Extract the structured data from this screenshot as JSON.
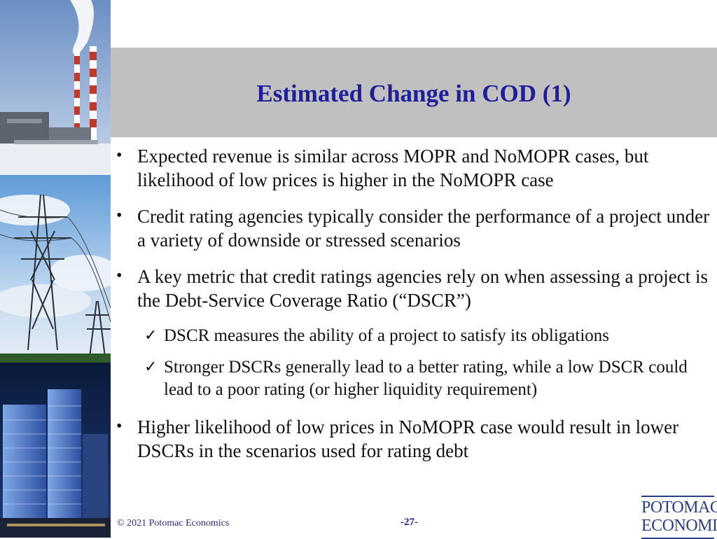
{
  "slide": {
    "title": "Estimated Change in COD (1)",
    "bullets": [
      {
        "level": 1,
        "marker": "•",
        "text": "Expected revenue is similar across MOPR and NoMOPR cases, but likelihood of low prices is higher in the NoMOPR case"
      },
      {
        "level": 1,
        "marker": "•",
        "text": "Credit rating agencies typically consider the performance of a project under a variety of downside or stressed scenarios"
      },
      {
        "level": 1,
        "marker": "•",
        "text": "A key metric that credit ratings agencies rely on when assessing a project is the Debt-Service Coverage Ratio (“DSCR”)"
      },
      {
        "level": 2,
        "marker": "✓",
        "text": "DSCR measures the ability of a project to satisfy its obligations"
      },
      {
        "level": 2,
        "marker": "✓",
        "text": "Stronger DSCRs generally lead to a better rating, while a low DSCR could lead to a poor rating (or higher liquidity requirement)"
      },
      {
        "level": 1,
        "marker": "•",
        "text": "Higher likelihood of low prices in NoMOPR case would result in lower DSCRs in the scenarios used for rating debt"
      }
    ]
  },
  "footer": {
    "copyright": "© 2021 Potomac Economics",
    "page_number": "-27-"
  },
  "logo": {
    "line1": "POTOMAC",
    "line2": "ECONOMICS"
  },
  "colors": {
    "title": "#1f1f99",
    "title_band": "#c0c0c0",
    "logo": "#2a3f8c"
  },
  "side_images": [
    "power-plant-image",
    "transmission-tower-image",
    "city-skyline-image"
  ]
}
